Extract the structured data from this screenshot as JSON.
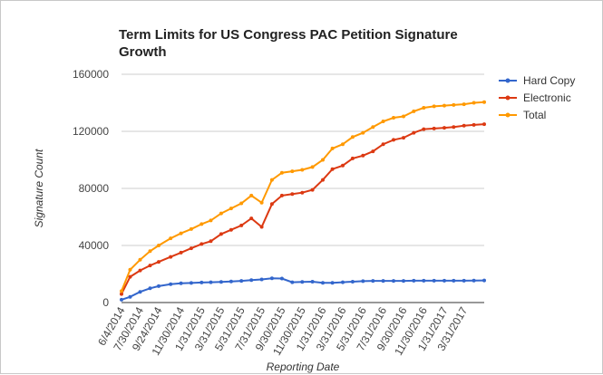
{
  "chart_data": {
    "type": "line",
    "title_lines": [
      "Term Limits for US Congress PAC Petition Signature",
      "Growth"
    ],
    "xlabel": "Reporting Date",
    "ylabel": "Signature Count",
    "ylim": [
      0,
      160000
    ],
    "yticks": [
      "0",
      "40000",
      "80000",
      "120000",
      "160000"
    ],
    "ytick_values": [
      0,
      40000,
      80000,
      120000,
      160000
    ],
    "xtick_labels": [
      "6/4/2014",
      "7/30/2014",
      "9/24/2014",
      "11/30/2014",
      "1/31/2015",
      "3/31/2015",
      "5/31/2015",
      "7/31/2015",
      "9/30/2015",
      "11/30/2015",
      "1/31/2016",
      "3/31/2016",
      "5/31/2016",
      "7/31/2016",
      "9/30/2016",
      "11/30/2016",
      "1/31/2017",
      "3/31/2017"
    ],
    "x": [
      "6/4/2014",
      "6/30/2014",
      "7/30/2014",
      "8/29/2014",
      "9/24/2014",
      "10/30/2014",
      "11/30/2014",
      "12/31/2014",
      "1/31/2015",
      "2/28/2015",
      "3/31/2015",
      "4/30/2015",
      "5/31/2015",
      "6/30/2015",
      "7/31/2015",
      "8/31/2015",
      "9/30/2015",
      "10/31/2015",
      "11/30/2015",
      "12/31/2015",
      "1/31/2016",
      "2/29/2016",
      "3/31/2016",
      "4/30/2016",
      "5/31/2016",
      "6/30/2016",
      "7/31/2016",
      "8/31/2016",
      "9/30/2016",
      "10/31/2016",
      "11/30/2016",
      "12/31/2016",
      "1/31/2017",
      "2/28/2017",
      "3/31/2017",
      "4/30/2017",
      "5/31/2017"
    ],
    "grid": true,
    "legend_position": "right",
    "series": [
      {
        "name": "Hard Copy",
        "color": "#3366cc",
        "values": [
          2000,
          4000,
          7500,
          10000,
          11500,
          12800,
          13500,
          13700,
          14000,
          14200,
          14500,
          14800,
          15200,
          15700,
          16200,
          17000,
          16800,
          14200,
          14500,
          14600,
          13800,
          13800,
          14200,
          14600,
          15000,
          15200,
          15200,
          15200,
          15200,
          15300,
          15300,
          15300,
          15300,
          15300,
          15300,
          15400,
          15500
        ]
      },
      {
        "name": "Electronic",
        "color": "#dc3912",
        "values": [
          6000,
          18000,
          22500,
          26000,
          28500,
          32000,
          35000,
          38000,
          41000,
          43000,
          48000,
          51000,
          54000,
          59000,
          53000,
          69000,
          75000,
          76000,
          77000,
          79000,
          86000,
          93500,
          96000,
          101000,
          103000,
          106000,
          111000,
          114000,
          115500,
          119000,
          121500,
          122000,
          122500,
          123000,
          124000,
          124500,
          125000
        ]
      },
      {
        "name": "Total",
        "color": "#ff9900",
        "values": [
          8000,
          23000,
          30000,
          36000,
          40000,
          45000,
          48500,
          51500,
          55000,
          57500,
          62500,
          66000,
          69500,
          75000,
          70000,
          86000,
          91000,
          92000,
          93000,
          95000,
          100000,
          108000,
          111000,
          116000,
          119000,
          123000,
          127000,
          129500,
          130500,
          134000,
          136500,
          137500,
          138000,
          138500,
          139000,
          140000,
          140500
        ]
      }
    ]
  }
}
